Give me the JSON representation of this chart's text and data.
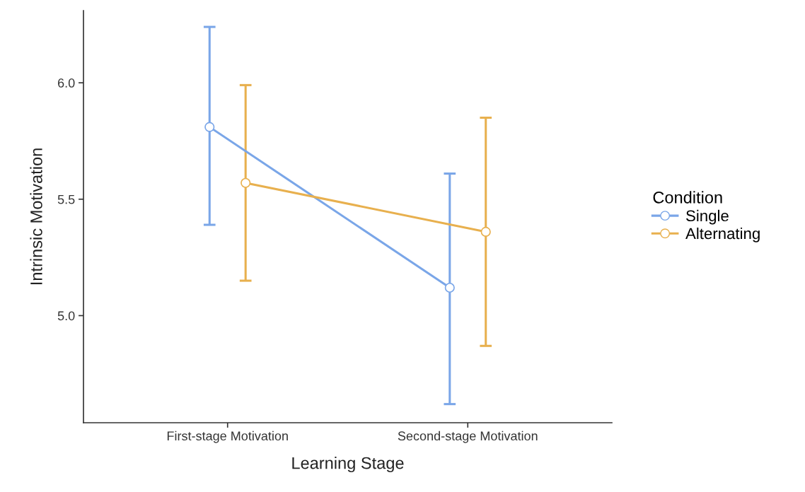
{
  "chart_data": {
    "type": "line",
    "xlabel": "Learning Stage",
    "ylabel": "Intrinsic Motivation",
    "legend_title": "Condition",
    "categories": [
      "First-stage Motivation",
      "Second-stage Motivation"
    ],
    "series": [
      {
        "name": "Single",
        "color": "#7aa6e8",
        "values": [
          5.81,
          5.12
        ],
        "errors": [
          [
            5.39,
            6.24
          ],
          [
            4.62,
            5.61
          ]
        ]
      },
      {
        "name": "Alternating",
        "color": "#e8b04e",
        "values": [
          5.57,
          5.36
        ],
        "errors": [
          [
            5.15,
            5.99
          ],
          [
            4.87,
            5.85
          ]
        ]
      }
    ],
    "ylim": [
      4.54,
      6.31
    ],
    "yticks": [
      {
        "value": 5,
        "label": "5.0"
      },
      {
        "value": 5.5,
        "label": "5.5"
      },
      {
        "value": 6,
        "label": "6.0"
      }
    ],
    "grid": false,
    "legend": "right",
    "marker": "circle",
    "line_style": "solid"
  }
}
